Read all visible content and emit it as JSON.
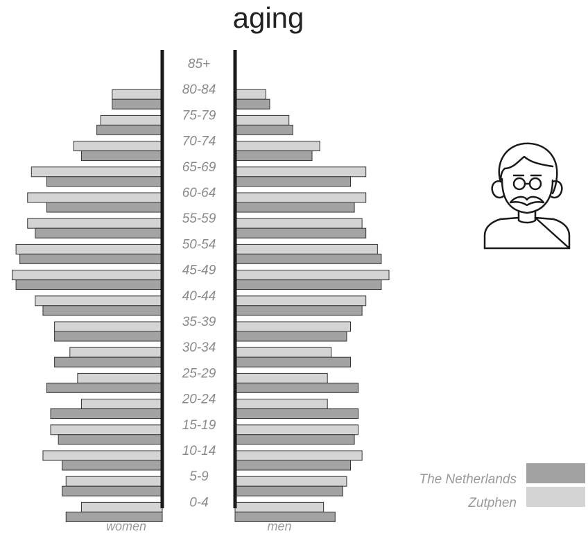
{
  "chart_data": {
    "type": "bar",
    "orientation": "population-pyramid",
    "title": "aging",
    "left_label": "women",
    "right_label": "men",
    "categories": [
      "85+",
      "80-84",
      "75-79",
      "70-74",
      "65-69",
      "60-64",
      "55-59",
      "50-54",
      "45-49",
      "40-44",
      "35-39",
      "30-34",
      "25-29",
      "20-24",
      "15-19",
      "10-14",
      "5-9",
      "0-4"
    ],
    "series": [
      {
        "name": "Zutphen",
        "color": "#d4d4d4",
        "women": [
          0,
          1.3,
          1.6,
          2.3,
          3.4,
          3.5,
          3.5,
          3.8,
          3.9,
          3.3,
          2.8,
          2.4,
          2.2,
          2.1,
          2.9,
          3.1,
          2.5,
          2.1
        ],
        "men": [
          0,
          0.8,
          1.4,
          2.2,
          3.4,
          3.4,
          3.3,
          3.7,
          4.0,
          3.4,
          3.0,
          2.5,
          2.4,
          2.4,
          3.2,
          3.3,
          2.9,
          2.3
        ]
      },
      {
        "name": "The Netherlands",
        "color": "#a3a3a3",
        "women": [
          0,
          1.3,
          1.7,
          2.1,
          3.0,
          3.0,
          3.3,
          3.7,
          3.8,
          3.1,
          2.8,
          2.8,
          3.0,
          2.9,
          2.7,
          2.6,
          2.6,
          2.5
        ],
        "men": [
          0,
          0.9,
          1.5,
          2.0,
          3.0,
          3.1,
          3.4,
          3.8,
          3.8,
          3.3,
          2.9,
          3.0,
          3.2,
          3.2,
          3.1,
          3.0,
          2.8,
          2.6
        ]
      }
    ]
  },
  "legend": {
    "items": [
      {
        "label": "The Netherlands",
        "color": "#a3a3a3"
      },
      {
        "label": "Zutphen",
        "color": "#d4d4d4"
      }
    ],
    "placement": "bottom-right"
  },
  "icon": {
    "name": "elderly-man-with-glasses-icon"
  }
}
